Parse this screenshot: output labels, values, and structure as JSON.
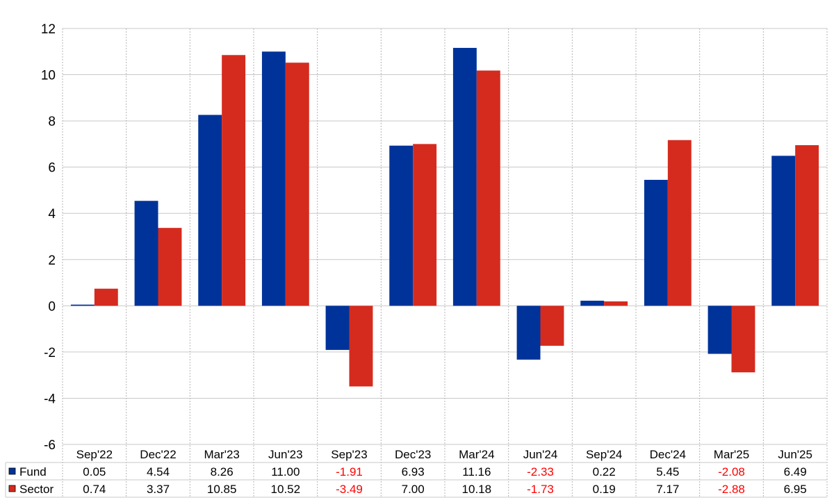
{
  "chart_data": {
    "type": "bar",
    "categories": [
      "Sep'22",
      "Dec'22",
      "Mar'23",
      "Jun'23",
      "Sep'23",
      "Dec'23",
      "Mar'24",
      "Jun'24",
      "Sep'24",
      "Dec'24",
      "Mar'25",
      "Jun'25"
    ],
    "series": [
      {
        "name": "Fund",
        "color": "#003399",
        "values": [
          0.05,
          4.54,
          8.26,
          11.0,
          -1.91,
          6.93,
          11.16,
          -2.33,
          0.22,
          5.45,
          -2.08,
          6.49
        ]
      },
      {
        "name": "Sector",
        "color": "#d52b1e",
        "values": [
          0.74,
          3.37,
          10.85,
          10.52,
          -3.49,
          7.0,
          10.18,
          -1.73,
          0.19,
          7.17,
          -2.88,
          6.95
        ]
      }
    ],
    "table": {
      "rows": [
        {
          "label": "Fund",
          "cells": [
            "0.05",
            "4.54",
            "8.26",
            "11.00",
            "-1.91",
            "6.93",
            "11.16",
            "-2.33",
            "0.22",
            "5.45",
            "-2.08",
            "6.49"
          ]
        },
        {
          "label": "Sector",
          "cells": [
            "0.74",
            "3.37",
            "10.85",
            "10.52",
            "-3.49",
            "7.00",
            "10.18",
            "-1.73",
            "0.19",
            "7.17",
            "-2.88",
            "6.95"
          ]
        }
      ]
    },
    "ylim": [
      -6,
      12
    ],
    "yticks": [
      "-6",
      "-4",
      "-2",
      "0",
      "2",
      "4",
      "6",
      "8",
      "10",
      "12"
    ],
    "grid": true,
    "negative_color": "#ff0000",
    "legend": "data-table"
  }
}
